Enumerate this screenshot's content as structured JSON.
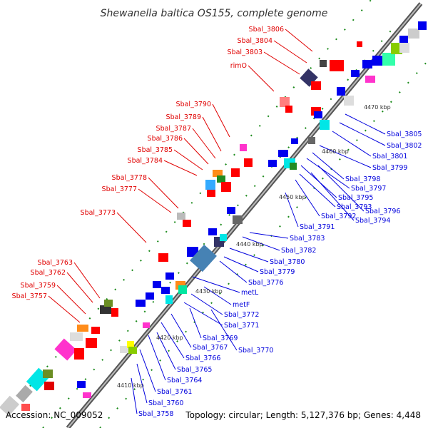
{
  "title": "Shewanella baltica OS155, complete genome",
  "footer": {
    "accession": "Accession: NC_009052",
    "topology": "Topology: circular; Length: 5,127,376 bp; Genes: 4,448"
  },
  "ticks": [
    "4410 kbp",
    "4420 kbp",
    "4430 kbp",
    "4440 kbp",
    "4450 kbp",
    "4460 kbp",
    "4470 kbp"
  ],
  "top_labels": [
    "Sbal_3806",
    "Sbal_3804",
    "Sbal_3803",
    "rimO",
    "Sbal_3790",
    "Sbal_3789",
    "Sbal_3787",
    "Sbal_3786",
    "Sbal_3785",
    "Sbal_3784",
    "Sbal_3778",
    "Sbal_3777",
    "Sbal_3773",
    "Sbal_3763",
    "Sbal_3762",
    "Sbal_3759",
    "Sbal_3757"
  ],
  "bottom_labels": [
    "Sbal_3805",
    "Sbal_3802",
    "Sbal_3801",
    "Sbal_3799",
    "Sbal_3798",
    "Sbal_3797",
    "Sbal_3795",
    "Sbal_3796",
    "Sbal_3793",
    "Sbal_3794",
    "Sbal_3792",
    "Sbal_3791",
    "Sbal_3783",
    "Sbal_3782",
    "Sbal_3780",
    "Sbal_3779",
    "Sbal_3776",
    "metL",
    "metF",
    "Sbal_3772",
    "Sbal_3771",
    "Sbal_3769",
    "Sbal_3770",
    "Sbal_3767",
    "Sbal_3766",
    "Sbal_3765",
    "Sbal_3764",
    "Sbal_3761",
    "Sbal_3760",
    "Sbal_3758"
  ],
  "colors": {
    "backbone": "#888888",
    "top_label": "#e00000",
    "bottom_label": "#0000dd",
    "forward_gene": "#ff0000",
    "reverse_gene": "#0000ee",
    "dots": "#1a8a1a"
  }
}
